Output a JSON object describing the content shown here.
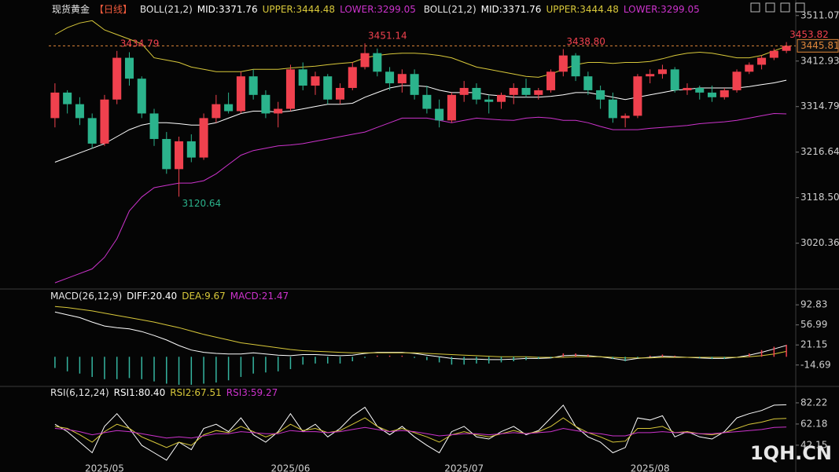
{
  "header": {
    "title": "现货黄金",
    "period": "【日线】"
  },
  "watermark": "1QH.CN",
  "chart_data": [
    {
      "type": "candlestick",
      "indicator": "BOLL(21,2)",
      "categories": [
        null,
        null,
        null,
        null,
        "2025/05",
        null,
        null,
        null,
        null,
        null,
        null,
        null,
        null,
        null,
        null,
        null,
        null,
        null,
        null,
        "2025/06",
        null,
        null,
        null,
        null,
        null,
        null,
        null,
        null,
        null,
        null,
        null,
        null,
        null,
        "2025/07",
        null,
        null,
        null,
        null,
        null,
        null,
        null,
        null,
        null,
        null,
        null,
        null,
        null,
        null,
        "2025/08",
        null,
        null,
        null,
        null,
        null,
        null,
        null,
        null,
        null,
        null,
        null
      ],
      "open": [
        3290,
        3345,
        3320,
        3290,
        3235,
        3330,
        3420,
        3375,
        3300,
        3245,
        3180,
        3240,
        3205,
        3290,
        3320,
        3305,
        3380,
        3340,
        3300,
        3310,
        3395,
        3360,
        3380,
        3330,
        3355,
        3400,
        3430,
        3390,
        3365,
        3385,
        3340,
        3310,
        3285,
        3340,
        3355,
        3330,
        3325,
        3340,
        3355,
        3340,
        3350,
        3390,
        3425,
        3380,
        3350,
        3330,
        3290,
        3295,
        3380,
        3385,
        3395,
        3350,
        3355,
        3345,
        3335,
        3350,
        3390,
        3405,
        3420,
        3435
      ],
      "high": [
        3365,
        3350,
        3335,
        3300,
        3340,
        3434.79,
        3432,
        3380,
        3310,
        3260,
        3250,
        3255,
        3300,
        3340,
        3345,
        3390,
        3395,
        3350,
        3325,
        3405,
        3410,
        3390,
        3385,
        3365,
        3410,
        3451.14,
        3440,
        3400,
        3395,
        3395,
        3360,
        3330,
        3345,
        3370,
        3365,
        3340,
        3345,
        3365,
        3375,
        3355,
        3395,
        3438.8,
        3430,
        3390,
        3360,
        3345,
        3300,
        3385,
        3395,
        3405,
        3400,
        3365,
        3360,
        3360,
        3355,
        3395,
        3410,
        3425,
        3440,
        3453.82
      ],
      "low": [
        3270,
        3300,
        3275,
        3225,
        3230,
        3320,
        3360,
        3290,
        3230,
        3170,
        3120.64,
        3195,
        3200,
        3280,
        3300,
        3300,
        3330,
        3290,
        3270,
        3305,
        3350,
        3340,
        3320,
        3320,
        3350,
        3395,
        3380,
        3350,
        3345,
        3330,
        3300,
        3270,
        3280,
        3325,
        3320,
        3300,
        3310,
        3320,
        3335,
        3330,
        3345,
        3380,
        3370,
        3340,
        3310,
        3280,
        3270,
        3290,
        3365,
        3375,
        3345,
        3340,
        3330,
        3325,
        3330,
        3345,
        3385,
        3395,
        3415,
        3430
      ],
      "close": [
        3345,
        3320,
        3290,
        3235,
        3330,
        3420,
        3375,
        3300,
        3245,
        3180,
        3240,
        3205,
        3290,
        3320,
        3305,
        3380,
        3340,
        3300,
        3310,
        3395,
        3360,
        3380,
        3330,
        3355,
        3400,
        3430,
        3390,
        3365,
        3385,
        3340,
        3310,
        3285,
        3340,
        3355,
        3330,
        3325,
        3340,
        3355,
        3340,
        3350,
        3390,
        3425,
        3380,
        3350,
        3330,
        3290,
        3295,
        3380,
        3385,
        3395,
        3350,
        3355,
        3345,
        3335,
        3350,
        3390,
        3405,
        3420,
        3435,
        3445.81
      ],
      "high_labels": [
        null,
        null,
        null,
        null,
        null,
        "3434.79",
        null,
        null,
        null,
        null,
        null,
        null,
        null,
        null,
        null,
        null,
        null,
        null,
        null,
        null,
        null,
        null,
        null,
        null,
        null,
        "3451.14",
        null,
        null,
        null,
        null,
        null,
        null,
        null,
        null,
        null,
        null,
        null,
        null,
        null,
        null,
        null,
        "3438.80",
        null,
        null,
        null,
        null,
        null,
        null,
        null,
        null,
        null,
        null,
        null,
        null,
        null,
        null,
        null,
        null,
        null,
        "3453.82"
      ],
      "low_labels": [
        null,
        null,
        null,
        null,
        null,
        null,
        null,
        null,
        null,
        null,
        "3120.64",
        null,
        null,
        null,
        null,
        null,
        null,
        null,
        null,
        null,
        null,
        null,
        null,
        null,
        null,
        null,
        null,
        null,
        null,
        null,
        null,
        null,
        null,
        null,
        null,
        null,
        null,
        null,
        null,
        null,
        null,
        null,
        null,
        null,
        null,
        null,
        null,
        null,
        null,
        null,
        null,
        null,
        null,
        null,
        null,
        null,
        null,
        null,
        null,
        null
      ],
      "up_color": "#f0414e",
      "down_color": "#2bb38c",
      "series": [
        {
          "name": "MID:3371.76",
          "color": "#ffffff",
          "values": [
            3195,
            3205,
            3215,
            3225,
            3235,
            3250,
            3265,
            3275,
            3280,
            3280,
            3278,
            3275,
            3275,
            3280,
            3290,
            3300,
            3305,
            3305,
            3303,
            3305,
            3310,
            3315,
            3320,
            3320,
            3322,
            3335,
            3345,
            3355,
            3360,
            3360,
            3358,
            3350,
            3345,
            3345,
            3345,
            3340,
            3338,
            3335,
            3335,
            3335,
            3337,
            3340,
            3345,
            3345,
            3340,
            3335,
            3330,
            3335,
            3340,
            3345,
            3350,
            3352,
            3355,
            3355,
            3355,
            3355,
            3358,
            3362,
            3366,
            3371.76
          ]
        },
        {
          "name": "UPPER:3444.48",
          "color": "#d8c83a",
          "values": [
            3470,
            3485,
            3495,
            3500,
            3480,
            3470,
            3460,
            3450,
            3420,
            3415,
            3410,
            3400,
            3395,
            3390,
            3390,
            3390,
            3395,
            3395,
            3395,
            3398,
            3400,
            3402,
            3405,
            3408,
            3410,
            3420,
            3425,
            3428,
            3430,
            3430,
            3428,
            3425,
            3420,
            3410,
            3400,
            3395,
            3390,
            3385,
            3380,
            3378,
            3385,
            3395,
            3405,
            3410,
            3410,
            3408,
            3410,
            3410,
            3412,
            3418,
            3425,
            3430,
            3432,
            3430,
            3425,
            3420,
            3420,
            3425,
            3435,
            3444.48
          ]
        },
        {
          "name": "LOWER:3299.05",
          "color": "#cc33cc",
          "values": [
            2935,
            2945,
            2955,
            2965,
            2990,
            3030,
            3090,
            3120,
            3140,
            3145,
            3150,
            3150,
            3155,
            3170,
            3190,
            3210,
            3220,
            3225,
            3230,
            3232,
            3235,
            3240,
            3245,
            3250,
            3255,
            3260,
            3270,
            3280,
            3290,
            3290,
            3290,
            3285,
            3280,
            3285,
            3290,
            3288,
            3286,
            3285,
            3290,
            3292,
            3290,
            3285,
            3285,
            3280,
            3272,
            3265,
            3265,
            3265,
            3268,
            3270,
            3272,
            3274,
            3278,
            3280,
            3282,
            3285,
            3290,
            3295,
            3300,
            3299.05
          ]
        }
      ],
      "ylim": [
        2925,
        3531
      ],
      "yticks": [
        3511.07,
        3412.93,
        3314.79,
        3216.64,
        {
          "value": 3118.5,
          "label": "3118.50"
        },
        3020.36
      ]
    },
    {
      "type": "line",
      "indicator": "MACD(26,12,9)",
      "series": [
        {
          "name": "DIFF:20.40",
          "color": "#ffffff",
          "values": [
            80,
            75,
            70,
            62,
            55,
            52,
            50,
            45,
            38,
            30,
            20,
            12,
            8,
            6,
            5,
            5,
            7,
            5,
            3,
            2,
            4,
            4,
            3,
            2,
            3,
            6,
            8,
            8,
            8,
            6,
            3,
            0,
            -3,
            -4,
            -4,
            -5,
            -5,
            -4,
            -3,
            -3,
            -2,
            2,
            3,
            2,
            0,
            -3,
            -6,
            -3,
            -1,
            1,
            0,
            -1,
            -2,
            -3,
            -3,
            -1,
            3,
            8,
            14,
            20.4
          ]
        },
        {
          "name": "DEA:9.67",
          "color": "#d8c83a",
          "values": [
            90,
            88,
            85,
            82,
            78,
            74,
            70,
            66,
            62,
            57,
            52,
            46,
            40,
            35,
            30,
            25,
            22,
            19,
            16,
            13,
            11,
            10,
            9,
            8,
            7,
            7,
            7,
            7,
            7,
            7,
            6,
            5,
            4,
            3,
            2,
            1,
            0,
            0,
            0,
            -1,
            -1,
            -1,
            0,
            0,
            0,
            -1,
            -2,
            -2,
            -2,
            -1,
            -1,
            -1,
            -1,
            -1,
            -1,
            -1,
            0,
            2,
            5,
            9.67
          ]
        },
        {
          "name": "MACD:21.47",
          "type": "bar",
          "color": "#cc33cc",
          "up_color": "#f0414e",
          "down_color": "#35b5a0",
          "values": [
            -20,
            -26,
            -30,
            -36,
            -40,
            -40,
            -38,
            -40,
            -44,
            -48,
            -50,
            -50,
            -48,
            -46,
            -42,
            -36,
            -30,
            -28,
            -26,
            -22,
            -14,
            -12,
            -12,
            -12,
            -8,
            -2,
            2,
            2,
            2,
            -2,
            -6,
            -10,
            -14,
            -14,
            -12,
            -12,
            -10,
            -8,
            -6,
            -4,
            -2,
            6,
            6,
            4,
            0,
            -4,
            -8,
            -2,
            2,
            4,
            2,
            0,
            -2,
            -4,
            -4,
            0,
            6,
            12,
            18,
            21.47
          ]
        }
      ],
      "ylim": [
        -51.5,
        118.3
      ],
      "yticks": [
        92.83,
        56.99,
        21.15,
        -14.69
      ]
    },
    {
      "type": "line",
      "indicator": "RSI(6,12,24)",
      "series": [
        {
          "name": "RSI1:80.40",
          "color": "#ffffff",
          "values": [
            62,
            55,
            45,
            35,
            60,
            72,
            58,
            42,
            35,
            28,
            45,
            38,
            58,
            62,
            55,
            68,
            52,
            45,
            55,
            72,
            55,
            62,
            50,
            58,
            70,
            78,
            60,
            52,
            60,
            50,
            42,
            35,
            55,
            60,
            50,
            48,
            55,
            60,
            52,
            56,
            68,
            80,
            60,
            50,
            45,
            35,
            40,
            68,
            66,
            70,
            50,
            55,
            50,
            48,
            55,
            68,
            72,
            75,
            80,
            80.4
          ]
        },
        {
          "name": "RSI2:67.51",
          "color": "#d8c83a",
          "values": [
            60,
            58,
            52,
            45,
            55,
            62,
            58,
            50,
            45,
            40,
            45,
            42,
            52,
            56,
            54,
            60,
            55,
            50,
            54,
            62,
            56,
            58,
            54,
            56,
            62,
            68,
            60,
            55,
            58,
            54,
            50,
            45,
            52,
            55,
            52,
            50,
            53,
            56,
            53,
            55,
            60,
            68,
            60,
            54,
            50,
            45,
            46,
            58,
            58,
            60,
            54,
            55,
            53,
            52,
            54,
            58,
            62,
            64,
            67,
            67.51
          ]
        },
        {
          "name": "RSI3:59.27",
          "color": "#cc33cc",
          "values": [
            58,
            57,
            55,
            52,
            54,
            56,
            55,
            53,
            51,
            49,
            50,
            49,
            51,
            53,
            53,
            55,
            54,
            53,
            53,
            56,
            55,
            55,
            54,
            55,
            57,
            59,
            57,
            55,
            56,
            55,
            53,
            51,
            52,
            53,
            53,
            52,
            53,
            54,
            53,
            54,
            55,
            58,
            56,
            54,
            53,
            51,
            51,
            54,
            54,
            55,
            54,
            54,
            53,
            53,
            54,
            55,
            56,
            57,
            59,
            59.27
          ]
        }
      ],
      "ylim": [
        22,
        96.3
      ],
      "yticks": [
        82.22,
        62.18,
        42.15
      ]
    }
  ]
}
